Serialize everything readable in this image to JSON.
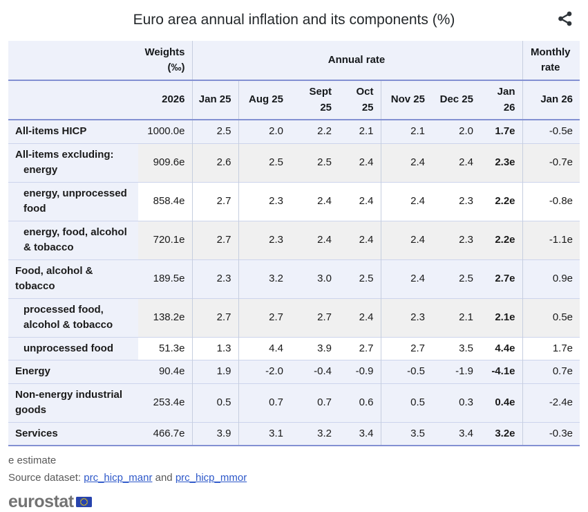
{
  "title": "Euro area annual inflation and its components (%)",
  "icons": {
    "share": "share-icon",
    "eu_flag": "eu-flag-icon"
  },
  "chart_data": {
    "type": "table",
    "title": "Euro area annual inflation and its components (%)",
    "column_groups": [
      {
        "label": "Weights (‰)",
        "span": 1
      },
      {
        "label": "Annual rate",
        "span": 7
      },
      {
        "label": "Monthly rate",
        "span": 1
      }
    ],
    "header": {
      "weights_line1": "Weights",
      "weights_line2": "(‰)",
      "annual_rate_label": "Annual rate",
      "monthly_rate_line1": "Monthly",
      "monthly_rate_line2": "rate",
      "weights_year": "2026",
      "months": [
        "Jan 25",
        "Aug 25",
        "Sept 25",
        "Oct 25",
        "Nov 25",
        "Dec 25",
        "Jan 26"
      ],
      "monthly_month": "Jan 26"
    },
    "rows": [
      {
        "label": "All-items HICP",
        "indent": 0,
        "shade": "blue",
        "weight": "1000.0e",
        "annual": [
          "2.5",
          "2.0",
          "2.2",
          "2.1",
          "2.1",
          "2.0",
          "1.7e"
        ],
        "monthly": "-0.5e"
      },
      {
        "label": "All-items excluding:",
        "label2": "energy",
        "indent": 0,
        "shade": "gray",
        "weight": "909.6e",
        "annual": [
          "2.6",
          "2.5",
          "2.5",
          "2.4",
          "2.4",
          "2.4",
          "2.3e"
        ],
        "monthly": "-0.7e"
      },
      {
        "label": "energy, unprocessed food",
        "indent": 1,
        "shade": "white",
        "weight": "858.4e",
        "annual": [
          "2.7",
          "2.3",
          "2.4",
          "2.4",
          "2.4",
          "2.3",
          "2.2e"
        ],
        "monthly": "-0.8e"
      },
      {
        "label": "energy, food, alcohol & tobacco",
        "indent": 1,
        "shade": "gray",
        "weight": "720.1e",
        "annual": [
          "2.7",
          "2.3",
          "2.4",
          "2.4",
          "2.4",
          "2.3",
          "2.2e"
        ],
        "monthly": "-1.1e"
      },
      {
        "label": "Food, alcohol & tobacco",
        "indent": 0,
        "shade": "blue",
        "weight": "189.5e",
        "annual": [
          "2.3",
          "3.2",
          "3.0",
          "2.5",
          "2.4",
          "2.5",
          "2.7e"
        ],
        "monthly": "0.9e"
      },
      {
        "label": "processed food, alcohol & tobacco",
        "indent": 1,
        "shade": "gray",
        "weight": "138.2e",
        "annual": [
          "2.7",
          "2.7",
          "2.7",
          "2.4",
          "2.3",
          "2.1",
          "2.1e"
        ],
        "monthly": "0.5e"
      },
      {
        "label": "unprocessed food",
        "indent": 1,
        "shade": "white",
        "weight": "51.3e",
        "annual": [
          "1.3",
          "4.4",
          "3.9",
          "2.7",
          "2.7",
          "3.5",
          "4.4e"
        ],
        "monthly": "1.7e"
      },
      {
        "label": "Energy",
        "indent": 0,
        "shade": "blue",
        "weight": "90.4e",
        "annual": [
          "1.9",
          "-2.0",
          "-0.4",
          "-0.9",
          "-0.5",
          "-1.9",
          "-4.1e"
        ],
        "monthly": "0.7e"
      },
      {
        "label": "Non-energy industrial goods",
        "indent": 0,
        "shade": "blue",
        "weight": "253.4e",
        "annual": [
          "0.5",
          "0.7",
          "0.7",
          "0.6",
          "0.5",
          "0.3",
          "0.4e"
        ],
        "monthly": "-2.4e"
      },
      {
        "label": "Services",
        "indent": 0,
        "shade": "blue",
        "weight": "466.7e",
        "annual": [
          "3.9",
          "3.1",
          "3.2",
          "3.4",
          "3.5",
          "3.4",
          "3.2e"
        ],
        "monthly": "-0.3e"
      }
    ]
  },
  "footer": {
    "note": "e estimate",
    "source_prefix": "Source dataset: ",
    "link1": "prc_hicp_manr",
    "link_join": " and ",
    "link2": "prc_hicp_mmor",
    "logo_text": "eurostat"
  },
  "colors": {
    "accent_border": "#8290d2",
    "row_separator": "#ccd4ec",
    "column_separator": "#c6cedf",
    "highlight_bg": "#eef1fa",
    "stripe_gray": "#f0f0f0",
    "link_blue": "#2c57c9",
    "logo_gray": "#737373",
    "flag_blue": "#2743ad",
    "star_yellow": "#f8d300"
  }
}
